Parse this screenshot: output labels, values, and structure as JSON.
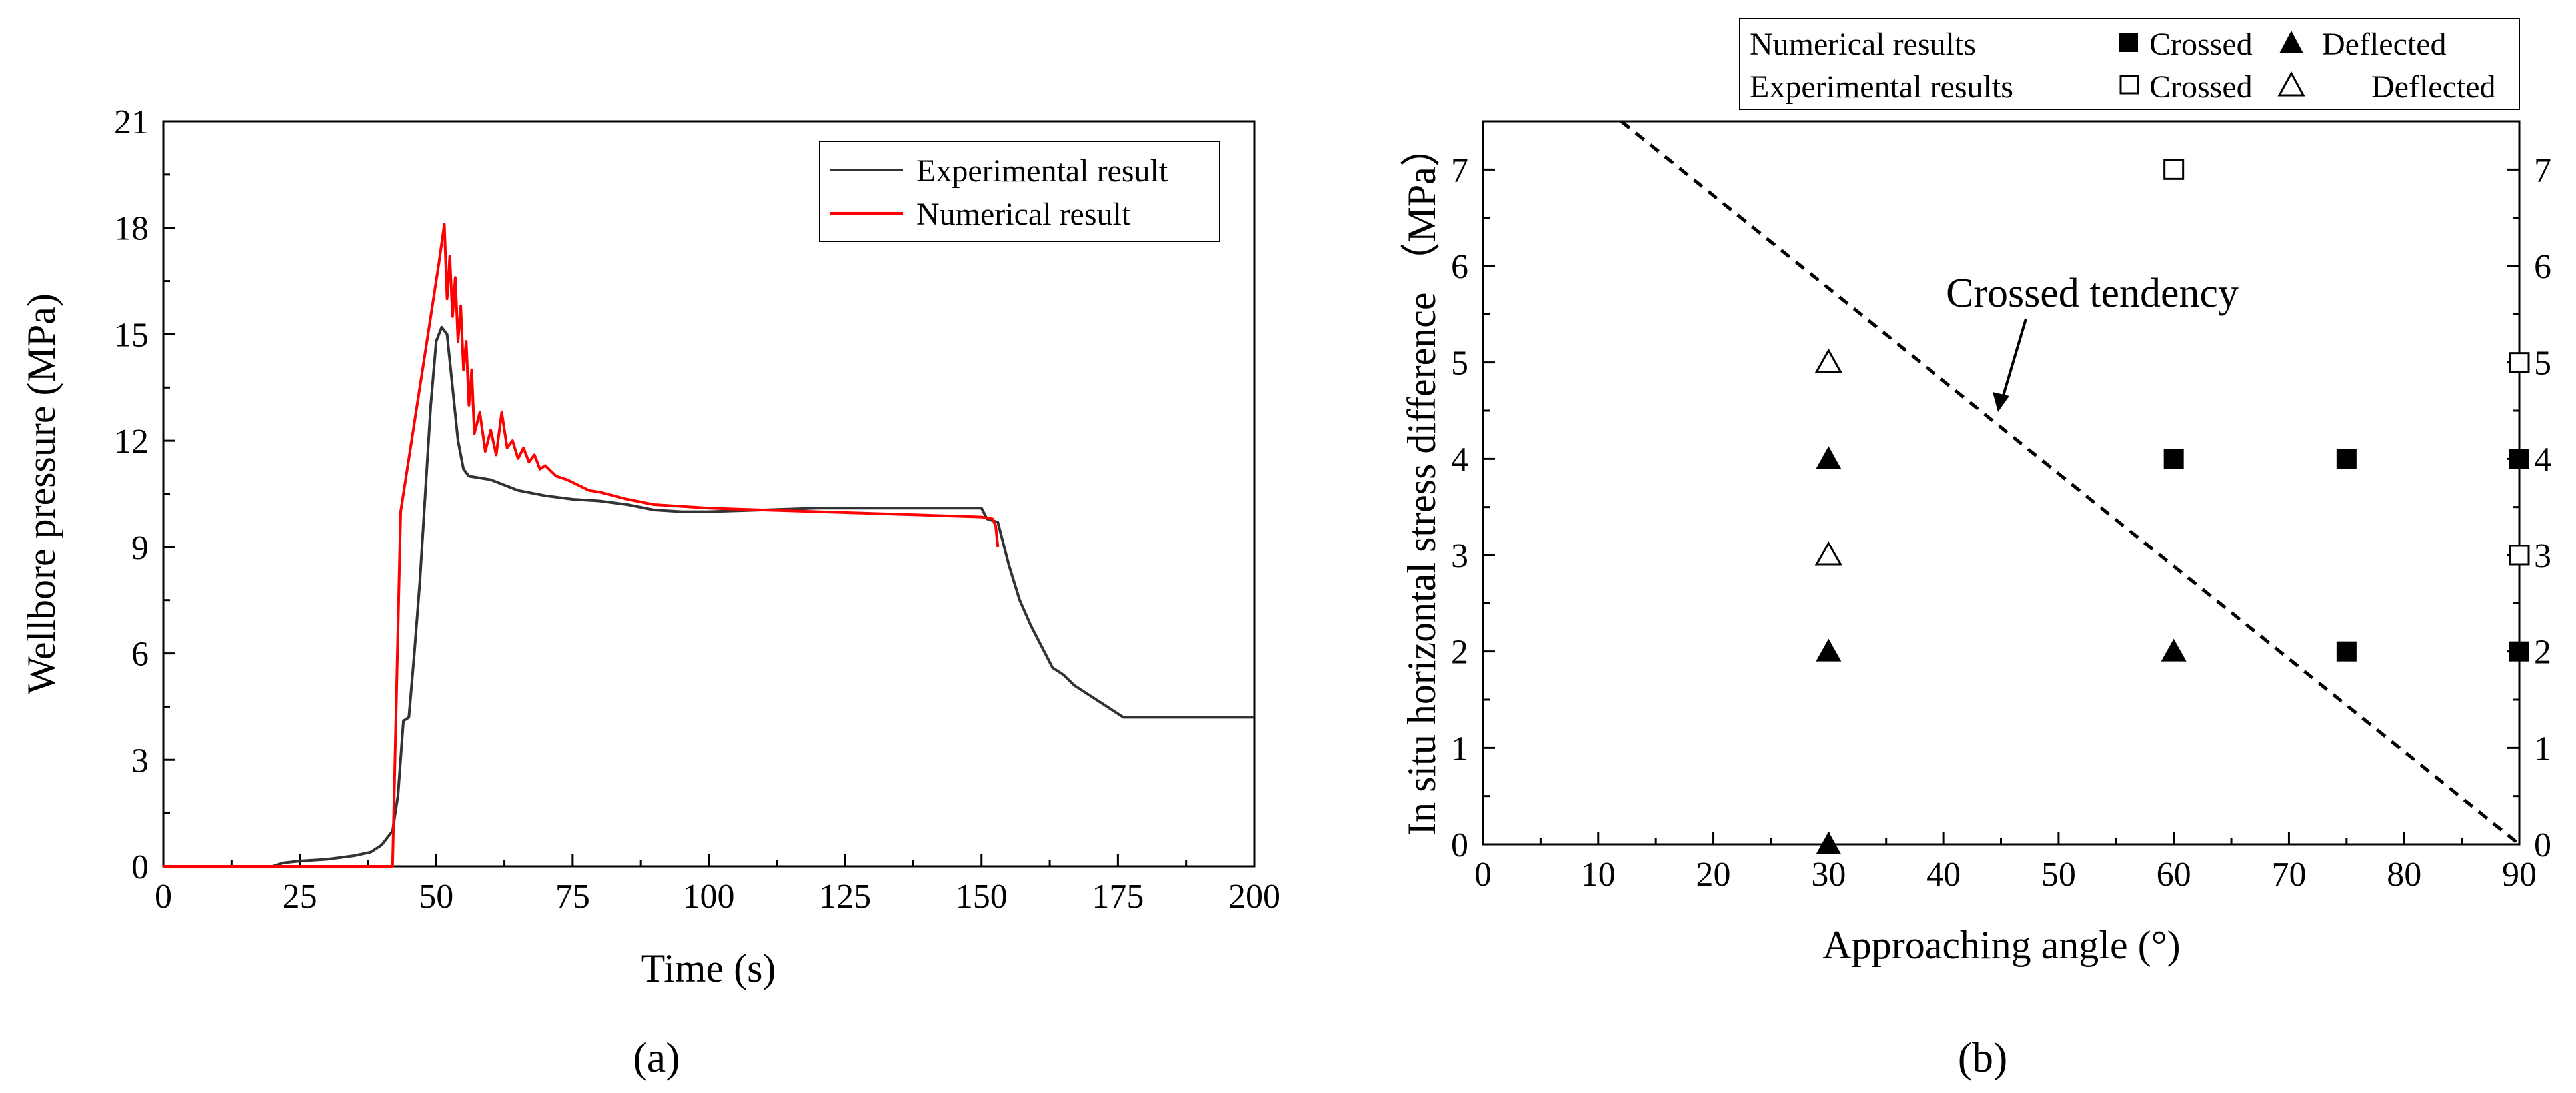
{
  "chart_data": [
    {
      "type": "line",
      "xlabel": "Time (s)",
      "ylabel": "Wellbore pressure (MPa)",
      "xlim": [
        0,
        200
      ],
      "ylim": [
        0,
        21
      ],
      "xticks": [
        0,
        25,
        50,
        75,
        100,
        125,
        150,
        175,
        200
      ],
      "yticks": [
        0,
        3,
        6,
        9,
        12,
        15,
        18,
        21
      ],
      "panel_label": "(a)",
      "legend": {
        "position": "top-right"
      },
      "series": [
        {
          "name": "Experimental result",
          "color": "#333333",
          "x": [
            0,
            20,
            22,
            25,
            30,
            35,
            38,
            40,
            42,
            43,
            44,
            45,
            46,
            47,
            48,
            49,
            50,
            51,
            52,
            53,
            54,
            55,
            56,
            58,
            60,
            65,
            70,
            75,
            80,
            85,
            90,
            95,
            100,
            110,
            120,
            130,
            140,
            150,
            151,
            153,
            155,
            157,
            159,
            161,
            163,
            165,
            167,
            170,
            173,
            175,
            176,
            200
          ],
          "y": [
            0,
            0,
            0.1,
            0.15,
            0.2,
            0.3,
            0.4,
            0.6,
            1.0,
            2.0,
            4.1,
            4.2,
            6.0,
            8.0,
            10.5,
            13.0,
            14.8,
            15.2,
            15.0,
            13.5,
            12.0,
            11.2,
            11.0,
            10.95,
            10.9,
            10.6,
            10.45,
            10.35,
            10.3,
            10.2,
            10.05,
            10.0,
            10.0,
            10.05,
            10.1,
            10.1,
            10.1,
            10.1,
            9.8,
            9.7,
            8.5,
            7.5,
            6.8,
            6.2,
            5.6,
            5.4,
            5.1,
            4.8,
            4.5,
            4.3,
            4.2,
            4.2
          ]
        },
        {
          "name": "Numerical result",
          "color": "#ff0000",
          "x": [
            0,
            42,
            43.5,
            45,
            47,
            49,
            50.5,
            51.5,
            52,
            52.5,
            53,
            53.5,
            54,
            54.5,
            55,
            55.5,
            56,
            56.5,
            57,
            58,
            59,
            60,
            61,
            62,
            63,
            64,
            65,
            66,
            67,
            68,
            69,
            70,
            72,
            74,
            76,
            78,
            80,
            85,
            90,
            95,
            100,
            110,
            120,
            130,
            140,
            150,
            152,
            152.6,
            153
          ],
          "y": [
            0,
            0,
            10.0,
            11.5,
            13.5,
            15.5,
            17.0,
            18.1,
            16.0,
            17.2,
            15.5,
            16.6,
            14.8,
            15.8,
            14.0,
            14.8,
            13.0,
            14.0,
            12.2,
            12.8,
            11.7,
            12.3,
            11.6,
            12.8,
            11.8,
            12.0,
            11.5,
            11.8,
            11.4,
            11.6,
            11.2,
            11.3,
            11.0,
            10.9,
            10.75,
            10.6,
            10.55,
            10.35,
            10.2,
            10.15,
            10.1,
            10.05,
            10.0,
            9.95,
            9.9,
            9.85,
            9.8,
            9.6,
            9.0
          ]
        }
      ]
    },
    {
      "type": "scatter",
      "xlabel": "Approaching angle (°)",
      "ylabel": "In situ horizontal stress difference （MPa）",
      "xlim": [
        0,
        90
      ],
      "ylim": [
        0,
        7.5
      ],
      "xticks": [
        0,
        10,
        20,
        30,
        40,
        50,
        60,
        70,
        80,
        90
      ],
      "yticks": [
        0,
        1,
        2,
        3,
        4,
        5,
        6,
        7
      ],
      "panel_label": "(b)",
      "legend": {
        "position": "above-right",
        "rows": [
          {
            "label": "Numerical results",
            "crossed": "Crossed",
            "deflected": "Deflected"
          },
          {
            "label": "Experimental results",
            "crossed": "Crossed",
            "deflected": "Deflected"
          }
        ]
      },
      "annotation": {
        "text": "Crossed tendency",
        "points_to": [
          45,
          4.5
        ]
      },
      "tendency_line": {
        "x": [
          12,
          90
        ],
        "y": [
          7.5,
          0
        ]
      },
      "series": [
        {
          "name": "Numerical Crossed",
          "marker": "filled-square",
          "points": [
            [
              60,
              4
            ],
            [
              75,
              4
            ],
            [
              90,
              4
            ],
            [
              75,
              2
            ],
            [
              90,
              2
            ]
          ]
        },
        {
          "name": "Numerical Deflected",
          "marker": "filled-triangle",
          "points": [
            [
              30,
              4
            ],
            [
              30,
              2
            ],
            [
              60,
              2
            ],
            [
              30,
              0
            ]
          ]
        },
        {
          "name": "Experimental Crossed",
          "marker": "open-square",
          "points": [
            [
              60,
              7
            ],
            [
              90,
              5
            ],
            [
              90,
              3
            ]
          ]
        },
        {
          "name": "Experimental Deflected",
          "marker": "open-triangle",
          "points": [
            [
              30,
              5
            ],
            [
              30,
              3
            ]
          ]
        }
      ]
    }
  ]
}
